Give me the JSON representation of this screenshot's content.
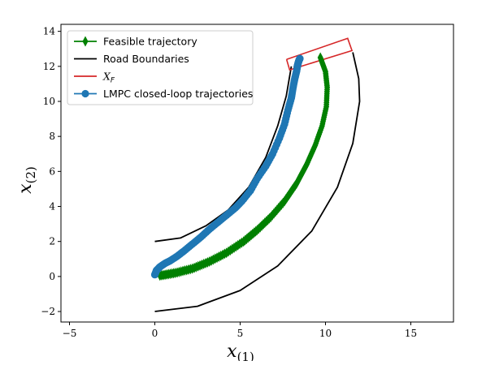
{
  "chart_data": {
    "type": "line",
    "xlabel": "x",
    "xlabel_sub": "(1)",
    "ylabel": "x",
    "ylabel_sub": "(2)",
    "xlim": [
      -5.5,
      17.5
    ],
    "ylim": [
      -2.6,
      14.4
    ],
    "xticks": [
      -5,
      0,
      5,
      10,
      15
    ],
    "yticks": [
      -2,
      0,
      2,
      4,
      6,
      8,
      10,
      12,
      14
    ],
    "xtick_labels": [
      "−5",
      "0",
      "5",
      "10",
      "15"
    ],
    "ytick_labels": [
      "−2",
      "0",
      "2",
      "4",
      "6",
      "8",
      "10",
      "12",
      "14"
    ],
    "legend_position": "upper-left",
    "legend": [
      {
        "key": "feasible",
        "label": "Feasible trajectory",
        "marker": "diamond",
        "color": "#008000"
      },
      {
        "key": "road",
        "label": "Road Boundaries",
        "marker": "none",
        "color": "#000000"
      },
      {
        "key": "terminal",
        "label": "X",
        "label_sub": "F",
        "marker": "none",
        "color": "#d62728"
      },
      {
        "key": "lmpc",
        "label": "LMPC closed-loop trajectories",
        "marker": "circle",
        "color": "#1f77b4"
      }
    ],
    "series": [
      {
        "name": "Road Boundaries",
        "key": "road",
        "color": "#000000",
        "style": "line",
        "segments": [
          {
            "x": [
              0,
              1.5,
              3.0,
              4.3,
              5.5,
              6.5,
              7.2,
              7.7,
              8.0
            ],
            "y": [
              2.0,
              2.2,
              2.9,
              3.8,
              5.1,
              6.8,
              8.6,
              10.3,
              12.0
            ]
          },
          {
            "x": [
              0,
              2.5,
              5.0,
              7.2,
              9.2,
              10.7,
              11.6,
              12.0,
              11.95,
              11.6
            ],
            "y": [
              -2.0,
              -1.7,
              -0.8,
              0.6,
              2.6,
              5.1,
              7.6,
              10.0,
              11.3,
              12.8
            ]
          }
        ]
      },
      {
        "name": "X_F",
        "key": "terminal",
        "color": "#d62728",
        "style": "polygon",
        "x": [
          7.72,
          11.3,
          11.55,
          7.9,
          7.72
        ],
        "y": [
          12.4,
          13.6,
          12.9,
          11.8,
          12.4
        ]
      },
      {
        "name": "Feasible trajectory",
        "key": "feasible",
        "color": "#008000",
        "style": "markers-line",
        "x": [
          0.3,
          1.2,
          2.2,
          3.2,
          4.2,
          5.2,
          6.0,
          6.8,
          7.6,
          8.3,
          8.9,
          9.4,
          9.8,
          10.05,
          10.1,
          10.0,
          9.7
        ],
        "y": [
          0.05,
          0.2,
          0.45,
          0.85,
          1.35,
          2.0,
          2.65,
          3.4,
          4.3,
          5.3,
          6.4,
          7.5,
          8.6,
          9.7,
          10.8,
          11.7,
          12.5
        ]
      },
      {
        "name": "LMPC closed-loop trajectories",
        "key": "lmpc",
        "color": "#1f77b4",
        "style": "markers-line",
        "x": [
          0.0,
          0.1,
          0.3,
          0.6,
          0.9,
          1.3,
          1.7,
          2.2,
          2.7,
          3.2,
          3.7,
          4.2,
          4.7,
          5.1,
          5.6,
          6.0,
          6.5,
          6.9,
          7.3,
          7.6,
          7.8,
          8.0,
          8.1,
          8.2,
          8.3,
          8.35,
          8.4,
          8.45,
          8.5
        ],
        "y": [
          0.1,
          0.35,
          0.55,
          0.75,
          0.9,
          1.15,
          1.45,
          1.85,
          2.25,
          2.7,
          3.1,
          3.5,
          3.9,
          4.3,
          4.9,
          5.6,
          6.3,
          7.0,
          7.9,
          8.7,
          9.5,
          10.2,
          10.8,
          11.3,
          11.7,
          12.0,
          12.2,
          12.35,
          12.45
        ]
      }
    ]
  }
}
